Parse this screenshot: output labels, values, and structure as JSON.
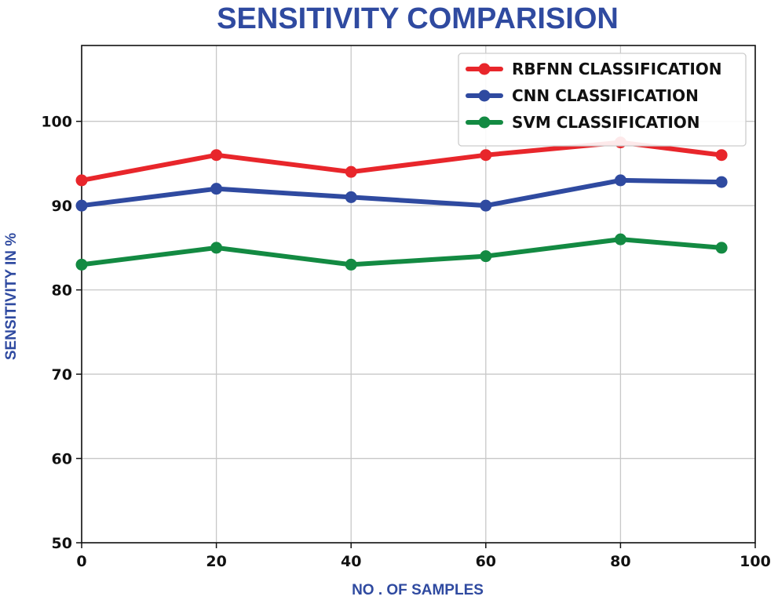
{
  "chart_data": {
    "type": "line",
    "title": "SENSITIVITY COMPARISION",
    "xlabel": "NO . OF SAMPLES",
    "ylabel": "SENSITIVITY IN %",
    "x": [
      0,
      20,
      40,
      60,
      80,
      95
    ],
    "xlim": [
      0,
      100
    ],
    "ylim": [
      50,
      109
    ],
    "xticks": [
      0,
      20,
      40,
      60,
      80,
      100
    ],
    "yticks": [
      50,
      60,
      70,
      80,
      90,
      100
    ],
    "grid": true,
    "legend_position": "top-right",
    "title_color": "#2f4aa0",
    "label_color": "#2f4aa0",
    "series": [
      {
        "name": "RBFNN CLASSIFICATION",
        "color": "#e8262b",
        "values": [
          93,
          96,
          94,
          96,
          97.5,
          96
        ]
      },
      {
        "name": "CNN CLASSIFICATION",
        "color": "#2f4aa0",
        "values": [
          90,
          92,
          91,
          90,
          93,
          92.8
        ]
      },
      {
        "name": "SVM CLASSIFICATION",
        "color": "#138a42",
        "values": [
          83,
          85,
          83,
          84,
          86,
          85
        ]
      }
    ]
  }
}
